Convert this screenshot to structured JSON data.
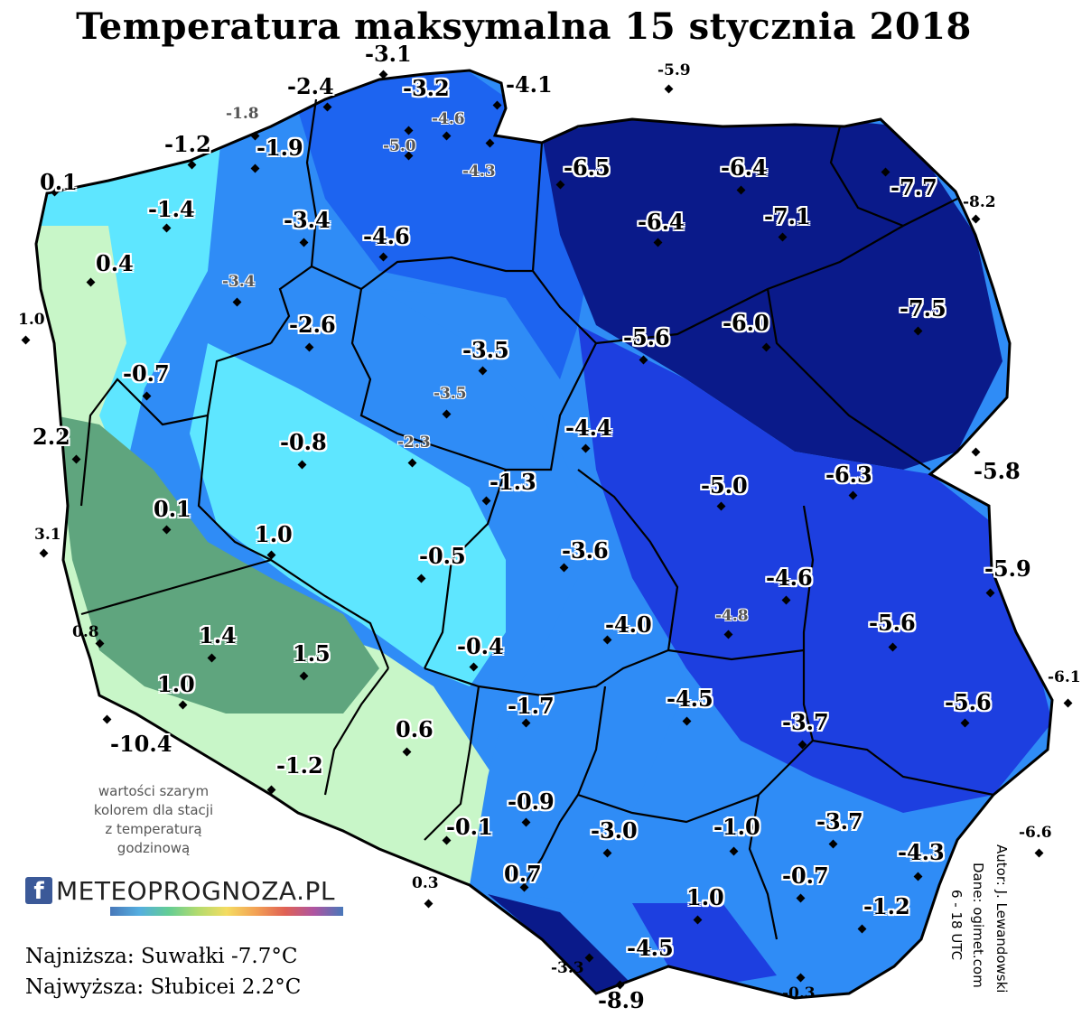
{
  "title": "Temperatura maksymalna 15 stycznia 2018",
  "note_lines": [
    "wartości szarym",
    "kolorem dla stacji",
    "z temperaturą",
    "godzinową"
  ],
  "summary": {
    "lowest": "Najniższa: Suwałki -7.7°C",
    "highest": "Najwyższa: Słubicei 2.2°C"
  },
  "author": {
    "line1": "Autor: J. Lewandowski",
    "line2": "Dane: ogimet.com",
    "line3": "6 - 18 UTC"
  },
  "logo": {
    "facebook_glyph": "f",
    "brand": "METEOPROGNOZA.PL",
    "colors": [
      "#3b5998"
    ]
  },
  "legend_colors": {
    "very_cold": "#0a1a8a",
    "cold": "#1d3fe0",
    "cool": "#2f8cf6",
    "near_zero": "#5ee6ff",
    "above_zero": "#c8f6c8",
    "warm": "#5fa57e"
  },
  "stations": [
    {
      "value": "-3.1",
      "style": "big"
    },
    {
      "value": "-2.4",
      "style": "big"
    },
    {
      "value": "-3.2",
      "style": "big"
    },
    {
      "value": "-4.1",
      "style": "big"
    },
    {
      "value": "-5.9",
      "style": "small"
    },
    {
      "value": "-1.8",
      "style": "gray"
    },
    {
      "value": "-4.6",
      "style": "gray"
    },
    {
      "value": "-1.2",
      "style": "big"
    },
    {
      "value": "-1.9",
      "style": "big"
    },
    {
      "value": "-5.0",
      "style": "gray"
    },
    {
      "value": "-4.3",
      "style": "gray"
    },
    {
      "value": "-6.5",
      "style": "big"
    },
    {
      "value": "-6.4",
      "style": "big"
    },
    {
      "value": "0.1",
      "style": "big"
    },
    {
      "value": "-7.7",
      "style": "big"
    },
    {
      "value": "-8.2",
      "style": "small"
    },
    {
      "value": "-1.4",
      "style": "big"
    },
    {
      "value": "-3.4",
      "style": "big"
    },
    {
      "value": "-4.6",
      "style": "big"
    },
    {
      "value": "-6.4",
      "style": "big"
    },
    {
      "value": "-7.1",
      "style": "big"
    },
    {
      "value": "0.4",
      "style": "big"
    },
    {
      "value": "-3.4",
      "style": "gray"
    },
    {
      "value": "-7.5",
      "style": "big"
    },
    {
      "value": "1.0",
      "style": "small"
    },
    {
      "value": "-2.6",
      "style": "big"
    },
    {
      "value": "-5.6",
      "style": "big"
    },
    {
      "value": "-6.0",
      "style": "big"
    },
    {
      "value": "-3.5",
      "style": "big"
    },
    {
      "value": "-0.7",
      "style": "big"
    },
    {
      "value": "-3.5",
      "style": "gray"
    },
    {
      "value": "2.2",
      "style": "big"
    },
    {
      "value": "-4.4",
      "style": "big"
    },
    {
      "value": "-0.8",
      "style": "big"
    },
    {
      "value": "-2.3",
      "style": "gray"
    },
    {
      "value": "-6.3",
      "style": "big"
    },
    {
      "value": "-5.8",
      "style": "big"
    },
    {
      "value": "-1.3",
      "style": "big"
    },
    {
      "value": "-5.0",
      "style": "big"
    },
    {
      "value": "0.1",
      "style": "big"
    },
    {
      "value": "3.1",
      "style": "small"
    },
    {
      "value": "1.0",
      "style": "big"
    },
    {
      "value": "-0.5",
      "style": "big"
    },
    {
      "value": "-3.6",
      "style": "big"
    },
    {
      "value": "-5.9",
      "style": "big"
    },
    {
      "value": "-4.6",
      "style": "big"
    },
    {
      "value": "-4.8",
      "style": "gray"
    },
    {
      "value": "1.4",
      "style": "big"
    },
    {
      "value": "0.8",
      "style": "small"
    },
    {
      "value": "-4.0",
      "style": "big"
    },
    {
      "value": "-5.6",
      "style": "big"
    },
    {
      "value": "1.5",
      "style": "big"
    },
    {
      "value": "-0.4",
      "style": "big"
    },
    {
      "value": "1.0",
      "style": "big"
    },
    {
      "value": "-6.1",
      "style": "small"
    },
    {
      "value": "-4.5",
      "style": "big"
    },
    {
      "value": "-1.7",
      "style": "big"
    },
    {
      "value": "-5.6",
      "style": "big"
    },
    {
      "value": "-3.7",
      "style": "big"
    },
    {
      "value": "-10.4",
      "style": "big"
    },
    {
      "value": "0.6",
      "style": "big"
    },
    {
      "value": "-1.2",
      "style": "big"
    },
    {
      "value": "-0.9",
      "style": "big"
    },
    {
      "value": "-3.7",
      "style": "big"
    },
    {
      "value": "-0.1",
      "style": "big"
    },
    {
      "value": "-3.0",
      "style": "big"
    },
    {
      "value": "-1.0",
      "style": "big"
    },
    {
      "value": "-6.6",
      "style": "small"
    },
    {
      "value": "-4.3",
      "style": "big"
    },
    {
      "value": "0.3",
      "style": "small"
    },
    {
      "value": "0.7",
      "style": "big"
    },
    {
      "value": "-0.7",
      "style": "big"
    },
    {
      "value": "1.0",
      "style": "big"
    },
    {
      "value": "-1.2",
      "style": "big"
    },
    {
      "value": "-4.5",
      "style": "big"
    },
    {
      "value": "-3.3",
      "style": "small"
    },
    {
      "value": "-0.3",
      "style": "small"
    },
    {
      "value": "-8.9",
      "style": "big"
    }
  ]
}
